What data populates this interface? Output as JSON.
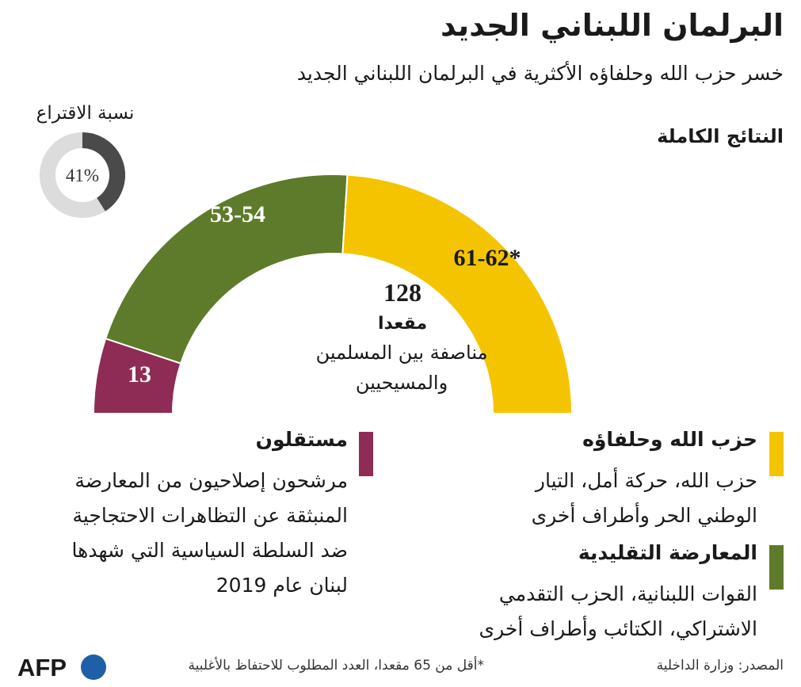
{
  "header": {
    "title": "البرلمان اللبناني الجديد",
    "subtitle": "خسر حزب الله وحلفاؤه الأكثرية في البرلمان اللبناني الجديد",
    "results_label": "النتائج الكاملة"
  },
  "vote_share": {
    "label": "نسبة الاقتراع",
    "value": 41,
    "text": "41%"
  },
  "center": {
    "total": "128",
    "total_label": "مقعدا",
    "note": "مناصفة بين المسلمين والمسيحيين"
  },
  "chart_data": {
    "type": "pie",
    "subtype": "semicircle-parliament",
    "title": "البرلمان اللبناني الجديد",
    "total_seats": 128,
    "series": [
      {
        "name": "حزب الله وحلفاؤه",
        "value": 61.5,
        "label": "61-62*",
        "color": "#f5c400"
      },
      {
        "name": "المعارضة التقليدية",
        "value": 53.5,
        "label": "53-54",
        "color": "#5e7a2b"
      },
      {
        "name": "مستقلون",
        "value": 13,
        "label": "13",
        "color": "#8e2c55"
      }
    ]
  },
  "legend": {
    "hezbollah": {
      "title": "حزب الله وحلفاؤه",
      "lines": [
        "حزب الله، حركة أمل، التيار",
        "الوطني الحر وأطراف أخرى"
      ],
      "color": "#f5c400"
    },
    "opposition": {
      "title": "المعارضة التقليدية",
      "lines": [
        "القوات اللبنانية، الحزب التقدمي",
        "الاشتراكي، الكتائب وأطراف أخرى"
      ],
      "color": "#5e7a2b"
    },
    "independents": {
      "title": "مستقلون",
      "lines": [
        "مرشحون إصلاحيون من المعارضة",
        "المنبثقة عن التظاهرات الاحتجاجية",
        "ضد السلطة السياسية التي شهدها",
        "لبنان عام 2019"
      ],
      "color": "#8e2c55"
    }
  },
  "footer": {
    "source": "المصدر: وزارة الداخلية",
    "footnote": "*أقل من 65 مقعدا، العدد المطلوب للاحتفاظ بالأغلبية",
    "logo": "AFP"
  }
}
